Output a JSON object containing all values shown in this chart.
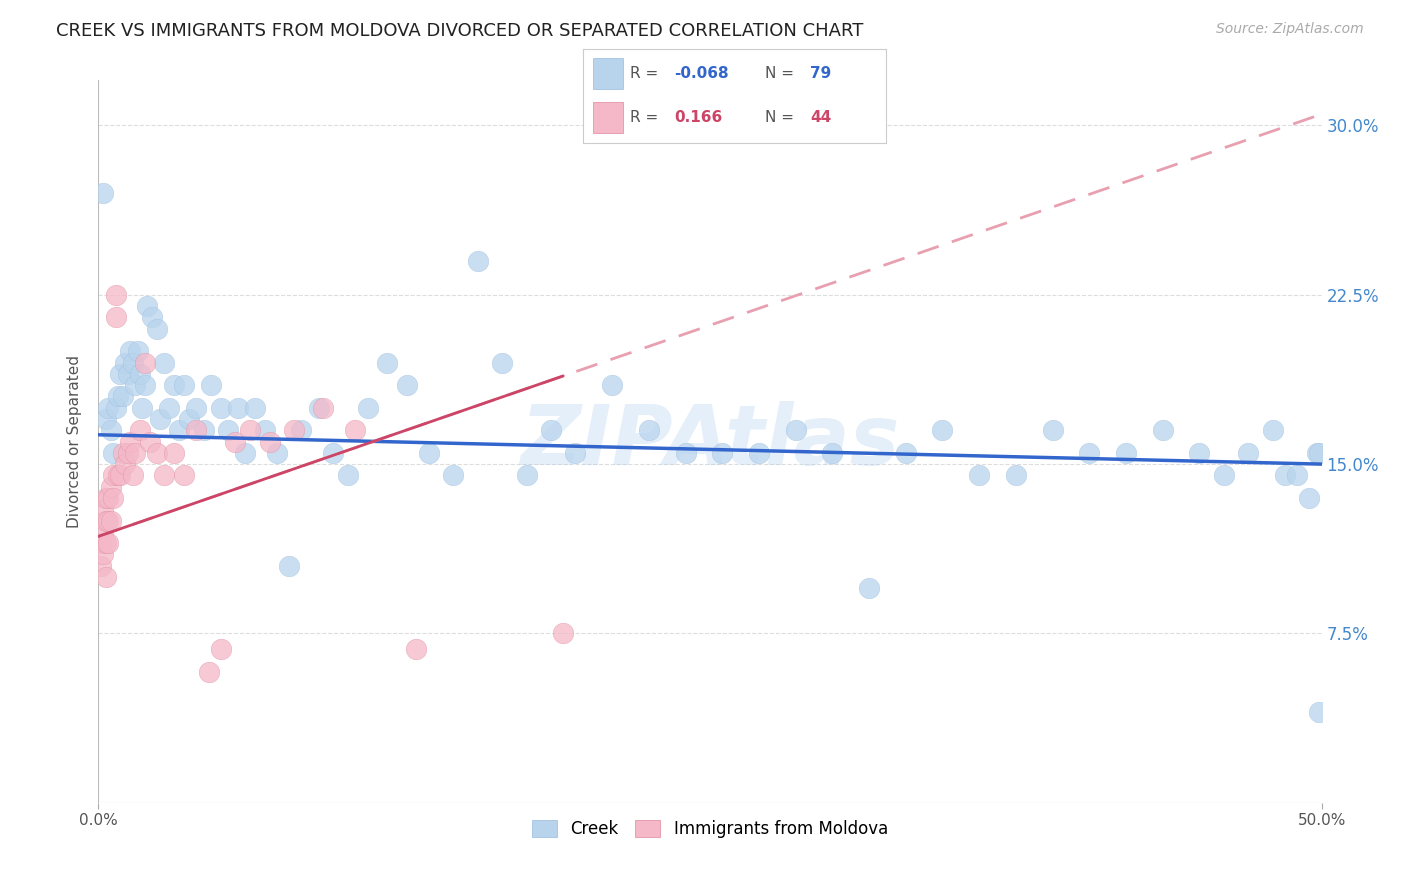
{
  "title": "CREEK VS IMMIGRANTS FROM MOLDOVA DIVORCED OR SEPARATED CORRELATION CHART",
  "source_text": "Source: ZipAtlas.com",
  "ylabel": "Divorced or Separated",
  "watermark": "ZIPAtlas",
  "xmin": 0.0,
  "xmax": 0.5,
  "ymin": 0.0,
  "ymax": 0.32,
  "ytick_positions": [
    0.075,
    0.15,
    0.225,
    0.3
  ],
  "ytick_labels": [
    "7.5%",
    "15.0%",
    "22.5%",
    "30.0%"
  ],
  "xtick_positions": [
    0.0,
    0.5
  ],
  "xtick_labels": [
    "0.0%",
    "50.0%"
  ],
  "legend_blue_R": "-0.068",
  "legend_blue_N": "79",
  "legend_pink_R": "0.166",
  "legend_pink_N": "44",
  "legend_blue_label": "Creek",
  "legend_pink_label": "Immigrants from Moldova",
  "blue_dot_color": "#b8d4ed",
  "pink_dot_color": "#f4b8c8",
  "blue_line_color": "#3366cc",
  "pink_line_color": "#cc4466",
  "pink_dash_line_color": "#e8a0b0",
  "grid_color": "#dddddd",
  "background_color": "#ffffff",
  "blue_line_start_y": 0.163,
  "blue_line_end_y": 0.15,
  "pink_line_start_y": 0.118,
  "pink_line_end_y": 0.305,
  "creek_x": [
    0.002,
    0.003,
    0.004,
    0.005,
    0.006,
    0.007,
    0.008,
    0.009,
    0.01,
    0.011,
    0.012,
    0.013,
    0.014,
    0.015,
    0.016,
    0.017,
    0.018,
    0.019,
    0.02,
    0.022,
    0.024,
    0.025,
    0.027,
    0.029,
    0.031,
    0.033,
    0.035,
    0.037,
    0.04,
    0.043,
    0.046,
    0.05,
    0.053,
    0.057,
    0.06,
    0.064,
    0.068,
    0.073,
    0.078,
    0.083,
    0.09,
    0.096,
    0.102,
    0.11,
    0.118,
    0.126,
    0.135,
    0.145,
    0.155,
    0.165,
    0.175,
    0.185,
    0.195,
    0.21,
    0.225,
    0.24,
    0.255,
    0.27,
    0.285,
    0.3,
    0.315,
    0.33,
    0.345,
    0.36,
    0.375,
    0.39,
    0.405,
    0.42,
    0.435,
    0.45,
    0.46,
    0.47,
    0.48,
    0.485,
    0.49,
    0.495,
    0.498,
    0.499,
    0.499
  ],
  "creek_y": [
    0.27,
    0.17,
    0.175,
    0.165,
    0.155,
    0.175,
    0.18,
    0.19,
    0.18,
    0.195,
    0.19,
    0.2,
    0.195,
    0.185,
    0.2,
    0.19,
    0.175,
    0.185,
    0.22,
    0.215,
    0.21,
    0.17,
    0.195,
    0.175,
    0.185,
    0.165,
    0.185,
    0.17,
    0.175,
    0.165,
    0.185,
    0.175,
    0.165,
    0.175,
    0.155,
    0.175,
    0.165,
    0.155,
    0.105,
    0.165,
    0.175,
    0.155,
    0.145,
    0.175,
    0.195,
    0.185,
    0.155,
    0.145,
    0.24,
    0.195,
    0.145,
    0.165,
    0.155,
    0.185,
    0.165,
    0.155,
    0.155,
    0.155,
    0.165,
    0.155,
    0.095,
    0.155,
    0.165,
    0.145,
    0.145,
    0.165,
    0.155,
    0.155,
    0.165,
    0.155,
    0.145,
    0.155,
    0.165,
    0.145,
    0.145,
    0.135,
    0.155,
    0.155,
    0.04
  ],
  "moldova_x": [
    0.001,
    0.001,
    0.002,
    0.002,
    0.002,
    0.003,
    0.003,
    0.003,
    0.003,
    0.004,
    0.004,
    0.004,
    0.005,
    0.005,
    0.006,
    0.006,
    0.007,
    0.007,
    0.008,
    0.009,
    0.01,
    0.011,
    0.012,
    0.013,
    0.014,
    0.015,
    0.017,
    0.019,
    0.021,
    0.024,
    0.027,
    0.031,
    0.035,
    0.04,
    0.045,
    0.05,
    0.056,
    0.062,
    0.07,
    0.08,
    0.092,
    0.105,
    0.13,
    0.19
  ],
  "moldova_y": [
    0.115,
    0.105,
    0.13,
    0.12,
    0.11,
    0.135,
    0.125,
    0.115,
    0.1,
    0.135,
    0.125,
    0.115,
    0.14,
    0.125,
    0.145,
    0.135,
    0.225,
    0.215,
    0.145,
    0.145,
    0.155,
    0.15,
    0.155,
    0.16,
    0.145,
    0.155,
    0.165,
    0.195,
    0.16,
    0.155,
    0.145,
    0.155,
    0.145,
    0.165,
    0.058,
    0.068,
    0.16,
    0.165,
    0.16,
    0.165,
    0.175,
    0.165,
    0.068,
    0.075
  ]
}
